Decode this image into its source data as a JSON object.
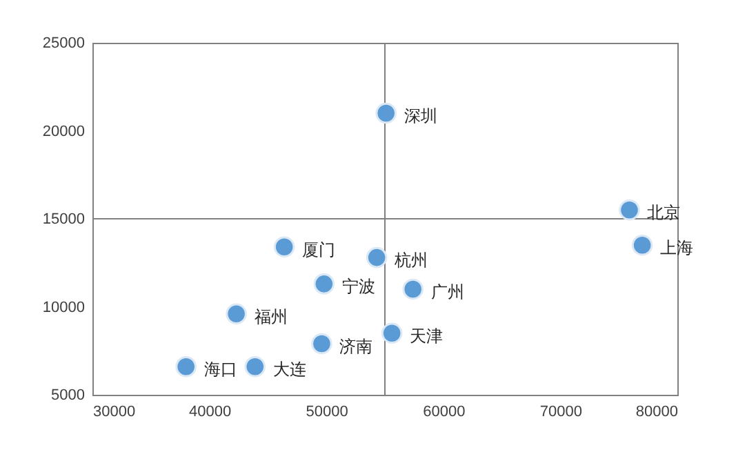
{
  "chart_data": {
    "type": "scatter",
    "marker": "circle",
    "grid": false,
    "legend": false,
    "xlim": [
      30000,
      80000
    ],
    "xticks": [
      30000,
      40000,
      50000,
      60000,
      70000,
      80000
    ],
    "ylim": [
      5000,
      25000
    ],
    "yticks": [
      5000,
      10000,
      15000,
      20000,
      25000
    ],
    "ref_lines": [
      {
        "axis": "x",
        "value": 55000,
        "color": "#808080"
      },
      {
        "axis": "y",
        "value": 15000,
        "color": "#808080"
      }
    ],
    "series": [
      {
        "name": "深圳",
        "color": "#5b9bd5",
        "x": [
          55100
        ],
        "values": [
          21000
        ]
      },
      {
        "name": "北京",
        "color": "#5b9bd5",
        "x": [
          75900
        ],
        "values": [
          15500
        ]
      },
      {
        "name": "上海",
        "color": "#5b9bd5",
        "x": [
          77000
        ],
        "values": [
          13500
        ]
      },
      {
        "name": "厦门",
        "color": "#5b9bd5",
        "x": [
          46400
        ],
        "values": [
          13400
        ]
      },
      {
        "name": "杭州",
        "color": "#5b9bd5",
        "x": [
          54300
        ],
        "values": [
          12800
        ]
      },
      {
        "name": "宁波",
        "color": "#5b9bd5",
        "x": [
          49800
        ],
        "values": [
          11300
        ]
      },
      {
        "name": "广州",
        "color": "#5b9bd5",
        "x": [
          57400
        ],
        "values": [
          11000
        ]
      },
      {
        "name": "福州",
        "color": "#5b9bd5",
        "x": [
          42300
        ],
        "values": [
          9600
        ]
      },
      {
        "name": "天津",
        "color": "#5b9bd5",
        "x": [
          55600
        ],
        "values": [
          8500
        ]
      },
      {
        "name": "济南",
        "color": "#5b9bd5",
        "x": [
          49600
        ],
        "values": [
          7900
        ]
      },
      {
        "name": "海口",
        "color": "#5b9bd5",
        "x": [
          38000
        ],
        "values": [
          6600
        ]
      },
      {
        "name": "大连",
        "color": "#5b9bd5",
        "x": [
          43900
        ],
        "values": [
          6600
        ]
      }
    ]
  }
}
